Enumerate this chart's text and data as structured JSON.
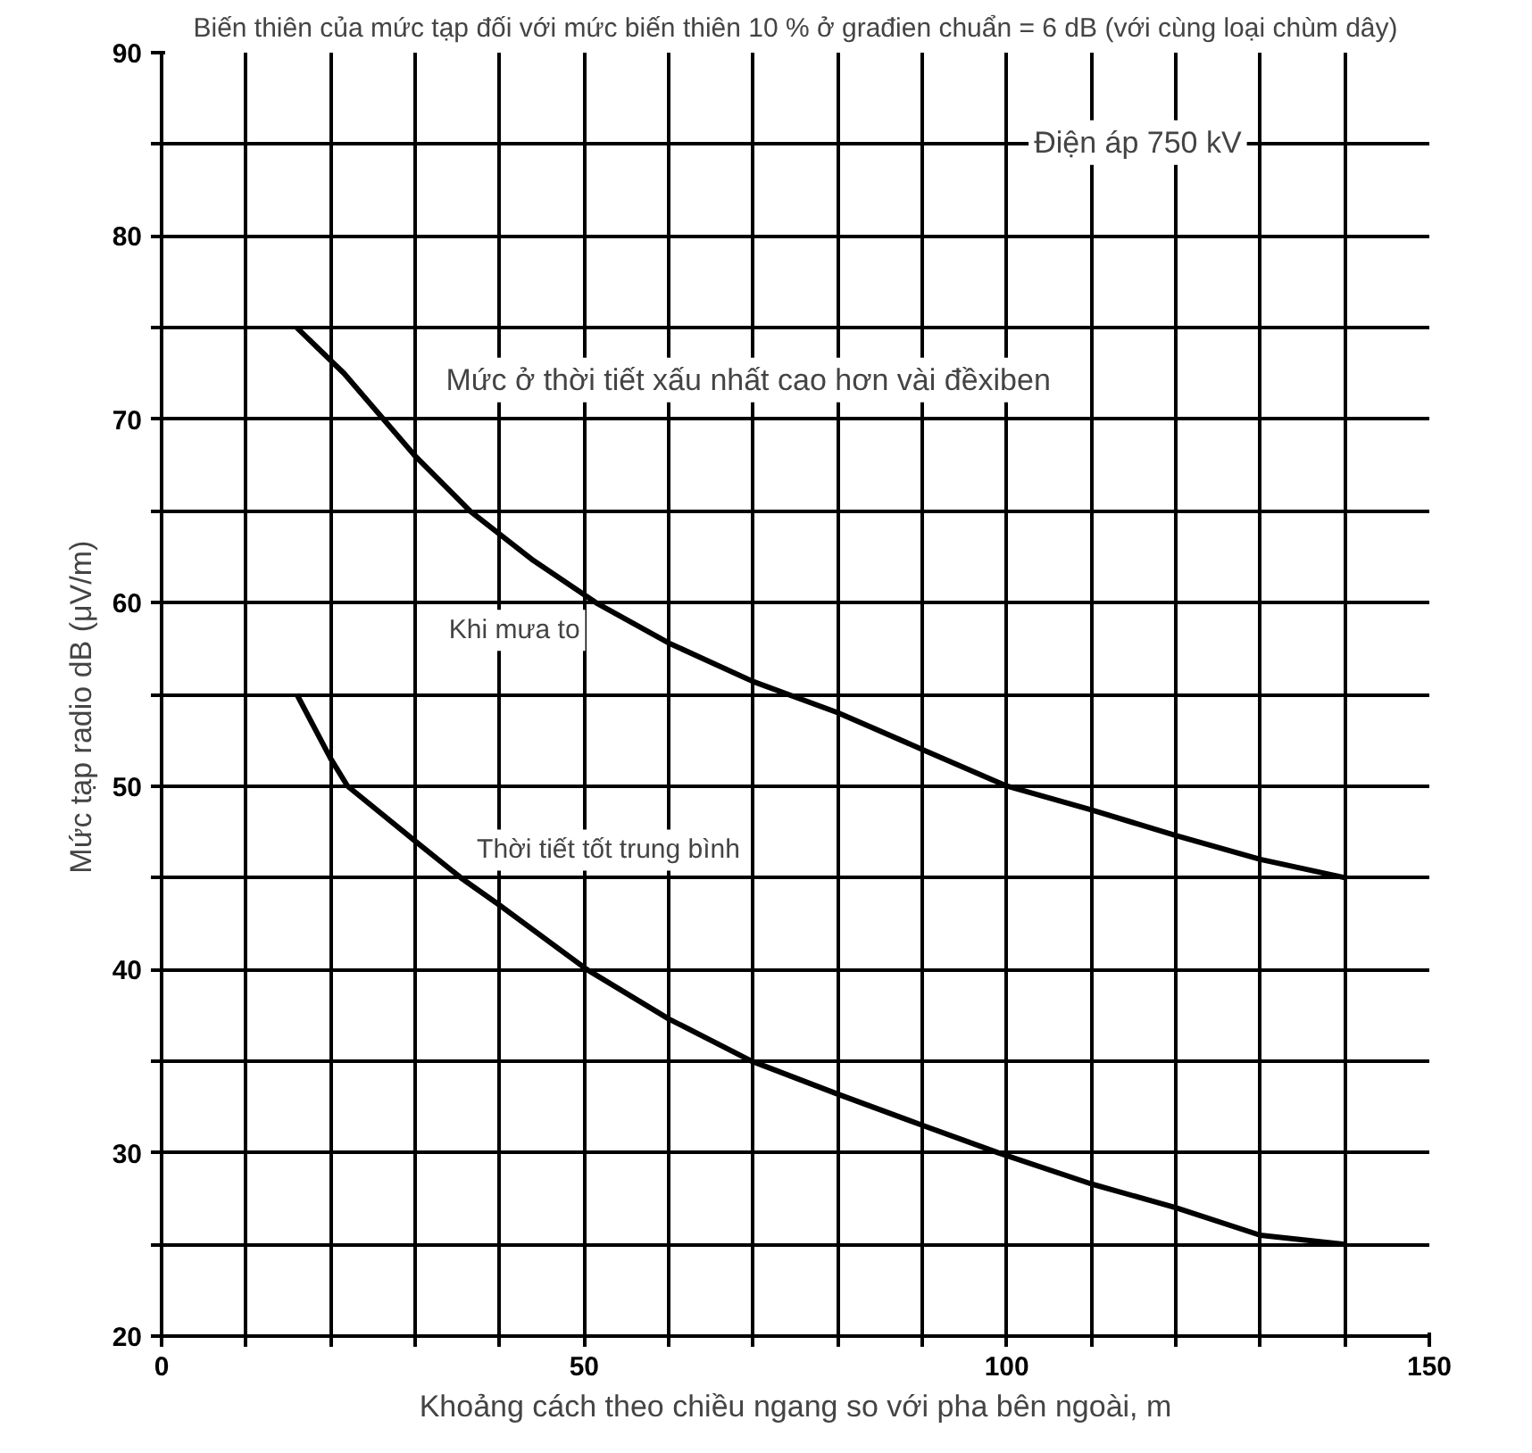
{
  "chart_data": {
    "type": "line",
    "title": "Biến thiên của mức tạp đối với mức biến thiên 10 % ở građien chuẩn = 6 dB (với cùng loại chùm dây)",
    "xlabel": "Khoảng cách theo chiều ngang so với pha bên ngoài, m",
    "ylabel": "Mức tạp radio    dB (μV/m)",
    "xlim": [
      0,
      150
    ],
    "ylim": [
      20,
      90
    ],
    "xticks": [
      0,
      {
        "value": 10,
        "label": null
      },
      {
        "value": 20,
        "label": null
      },
      {
        "value": 30,
        "label": null
      },
      {
        "value": 40,
        "label": null
      },
      50,
      {
        "value": 60,
        "label": null
      },
      {
        "value": 70,
        "label": null
      },
      {
        "value": 80,
        "label": null
      },
      {
        "value": 90,
        "label": null
      },
      100,
      {
        "value": 110,
        "label": null
      },
      {
        "value": 120,
        "label": null
      },
      {
        "value": 130,
        "label": null
      },
      {
        "value": 140,
        "label": null
      },
      150
    ],
    "yticks": [
      20,
      {
        "value": 25,
        "label": null
      },
      30,
      {
        "value": 35,
        "label": null
      },
      40,
      {
        "value": 45,
        "label": null
      },
      50,
      {
        "value": 55,
        "label": null
      },
      60,
      {
        "value": 65,
        "label": null
      },
      70,
      {
        "value": 75,
        "label": null
      },
      80,
      {
        "value": 85,
        "label": null
      },
      90
    ],
    "grid": true,
    "marker": "none",
    "line_style": "solid",
    "series": [
      {
        "color": "#000000",
        "x": [
          16,
          21.6,
          30,
          36.5,
          44,
          51.4,
          60,
          70,
          80,
          90,
          100,
          110,
          120,
          130,
          140
        ],
        "values": [
          75,
          72.5,
          68,
          65,
          62.3,
          60,
          57.8,
          55.7,
          54,
          52,
          50,
          48.7,
          47.3,
          46,
          45
        ]
      },
      {
        "color": "#000000",
        "x": [
          16,
          20,
          22,
          30,
          35.4,
          40,
          50.3,
          60,
          69.8,
          80,
          90,
          99,
          110,
          120,
          130,
          140
        ],
        "values": [
          55,
          51.5,
          50,
          47,
          45,
          43.5,
          40,
          37.3,
          35,
          33.2,
          31.5,
          30,
          28.3,
          27,
          25.5,
          25
        ]
      }
    ],
    "annotations": [
      "Điện áp 750 kV",
      "Mức ở thời tiết xấu nhất cao hơn vài đềxiben",
      {
        "text": "Khi mưa to",
        "x": 51.4,
        "y": 60
      },
      {
        "text": "Thời tiết tốt trung bình",
        "x": 35.4,
        "y": 45
      }
    ]
  }
}
